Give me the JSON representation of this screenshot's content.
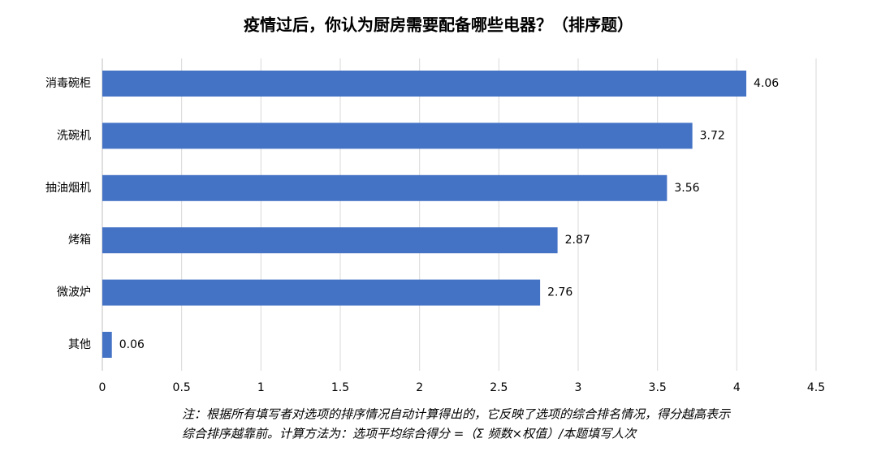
{
  "chart_data": {
    "type": "bar",
    "orientation": "horizontal",
    "title": "疫情过后，你认为厨房需要配备哪些电器？（排序题）",
    "categories": [
      "消毒碗柜",
      "洗碗机",
      "抽油烟机",
      "烤箱",
      "微波炉",
      "其他"
    ],
    "values": [
      4.06,
      3.72,
      3.56,
      2.87,
      2.76,
      0.06
    ],
    "color": "#4472c4",
    "xlim": [
      0,
      4.5
    ],
    "xticks": [
      0,
      0.5,
      1,
      1.5,
      2,
      2.5,
      3,
      3.5,
      4,
      4.5
    ],
    "grid": true,
    "note": [
      "注：根据所有填写者对选项的排序情况自动计算得出的，它反映了选项的综合排名情况，得分越高表示",
      "综合排序越靠前。计算方法为：选项平均综合得分 =（Σ 频数×权值）/本题填写人次"
    ]
  }
}
